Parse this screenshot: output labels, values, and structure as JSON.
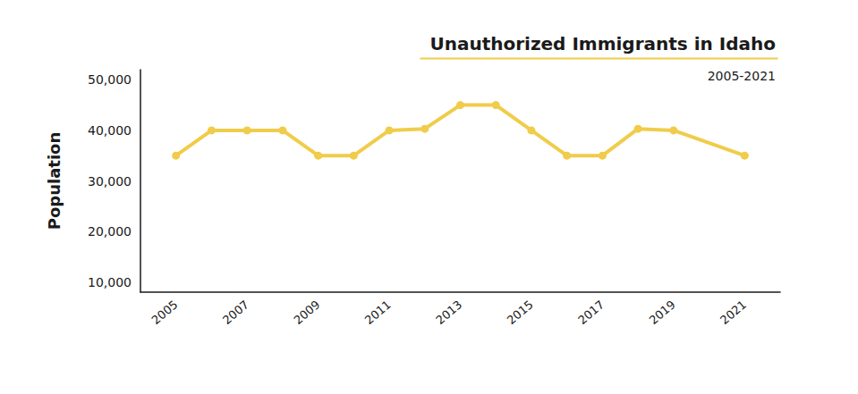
{
  "chart_data": {
    "type": "line",
    "title": "Unauthorized Immigrants in Idaho",
    "subtitle": "2005-2021",
    "y_label": "Population",
    "x": [
      2005,
      2006,
      2007,
      2008,
      2009,
      2010,
      2011,
      2012,
      2013,
      2014,
      2015,
      2016,
      2017,
      2018,
      2019,
      2021
    ],
    "values": [
      35000,
      40000,
      40000,
      40000,
      35000,
      35000,
      40000,
      40300,
      45000,
      45000,
      40000,
      35000,
      35000,
      40300,
      40000,
      35000
    ],
    "color": "#f0cc4a",
    "marker": "circle",
    "xlim": [
      2004,
      2022
    ],
    "xticks": [
      2005,
      2007,
      2009,
      2011,
      2013,
      2015,
      2017,
      2019,
      2021
    ],
    "ylim": [
      8000,
      52000
    ],
    "yticks": [
      {
        "value": 10000,
        "label": "10,000"
      },
      {
        "value": 20000,
        "label": "20,000"
      },
      {
        "value": 30000,
        "label": "30,000"
      },
      {
        "value": 40000,
        "label": "40,000"
      },
      {
        "value": 50000,
        "label": "50,000"
      }
    ],
    "grid": false
  }
}
